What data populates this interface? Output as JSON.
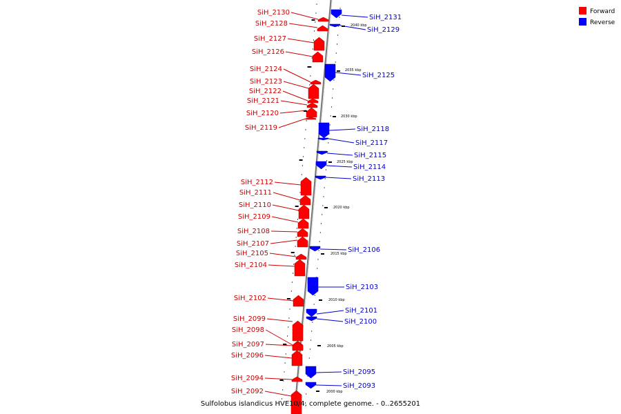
{
  "caption": "Sulfolobus islandicus HVE10/4, complete genome. - 0..2655201",
  "legend": {
    "placement": "top-right",
    "items": [
      {
        "label": "Forward",
        "color": "#ff0000"
      },
      {
        "label": "Reverse",
        "color": "#0000ff"
      }
    ]
  },
  "colors": {
    "forward_fill": "#ff0000",
    "forward_label": "#cc0000",
    "reverse_fill": "#0000ff",
    "reverse_label": "#0000cc",
    "axis": "#999999"
  },
  "tick_labels": [
    "2040 kbp",
    "2035 kbp",
    "2030 kbp",
    "2025 kbp",
    "2020 kbp",
    "2015 kbp",
    "2010 kbp",
    "2005 kbp",
    "2000 kbp"
  ],
  "forward_genes": [
    "SiH_2130",
    "SiH_2128",
    "SiH_2127",
    "SiH_2126",
    "SiH_2124",
    "SiH_2123",
    "SiH_2122",
    "SiH_2121",
    "SiH_2120",
    "SiH_2119",
    "SiH_2112",
    "SiH_2111",
    "SiH_2110",
    "SiH_2109",
    "SiH_2108",
    "SiH_2107",
    "SiH_2105",
    "SiH_2104",
    "SiH_2102",
    "SiH_2099",
    "SiH_2098",
    "SiH_2097",
    "SiH_2096",
    "SiH_2094",
    "SiH_2092"
  ],
  "reverse_genes": [
    "SiH_2131",
    "SiH_2129",
    "SiH_2125",
    "SiH_2118",
    "SiH_2117",
    "SiH_2115",
    "SiH_2114",
    "SiH_2113",
    "SiH_2106",
    "SiH_2103",
    "SiH_2101",
    "SiH_2100",
    "SiH_2095",
    "SiH_2093"
  ]
}
